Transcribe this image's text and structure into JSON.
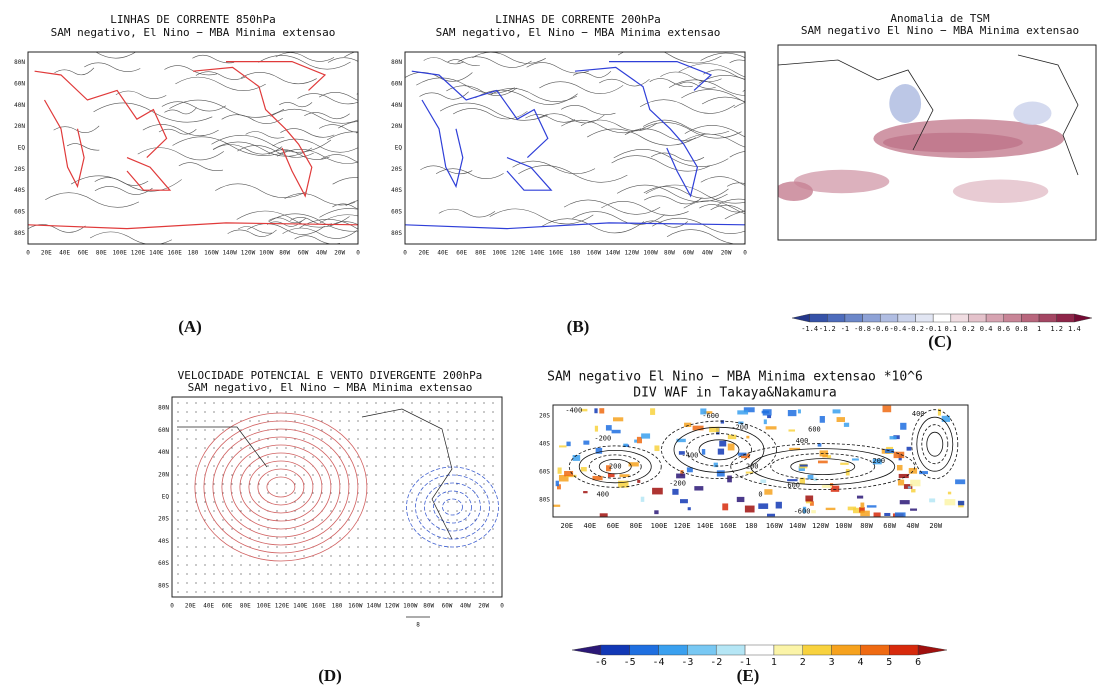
{
  "panels": [
    {
      "letter": "(A)",
      "title": [
        "LINHAS DE CORRENTE 850hPa",
        "SAM negativo, El Nino − MBA Minima extensao"
      ],
      "lat_labels": [
        "80N",
        "60N",
        "40N",
        "20N",
        "EQ",
        "20S",
        "40S",
        "60S",
        "80S"
      ],
      "lon_labels": [
        "0",
        "20E",
        "40E",
        "60E",
        "80E",
        "100E",
        "120E",
        "140E",
        "160E",
        "180",
        "160W",
        "140W",
        "120W",
        "100W",
        "80W",
        "60W",
        "40W",
        "20W",
        "0"
      ],
      "line_color": "#e03a3a"
    },
    {
      "letter": "(B)",
      "title": [
        "LINHAS DE CORRENTE 200hPa",
        "SAM negativo, El Nino − MBA Minima extensao"
      ],
      "lat_labels": [
        "80N",
        "60N",
        "40N",
        "20N",
        "EQ",
        "20S",
        "40S",
        "60S",
        "80S"
      ],
      "lon_labels": [
        "0",
        "20E",
        "40E",
        "60E",
        "80E",
        "100E",
        "120E",
        "140E",
        "160E",
        "180",
        "160W",
        "140W",
        "120W",
        "100W",
        "80W",
        "60W",
        "40W",
        "20W",
        "0"
      ],
      "line_color": "#2f3fd8"
    },
    {
      "letter": "(C)",
      "title": [
        "Anomalia de TSM",
        "SAM negativo El Nino − MBA Minima extensao"
      ],
      "colorbar": {
        "ticks": [
          -1.4,
          -1.2,
          -1,
          -0.8,
          -0.6,
          -0.4,
          -0.2,
          -0.1,
          0.1,
          0.2,
          0.4,
          0.6,
          0.8,
          1,
          1.2,
          1.4
        ],
        "colors": [
          "#24378a",
          "#3552a8",
          "#4d6cbc",
          "#6c87c9",
          "#8ea2d6",
          "#b0bde2",
          "#ccd4ec",
          "#e2e6f3",
          "#ffffff",
          "#f0dde2",
          "#e4c2cb",
          "#d6a3b1",
          "#c88597",
          "#b8667d",
          "#a44663",
          "#8e2549",
          "#730a33"
        ]
      }
    },
    {
      "letter": "(D)",
      "title": [
        "VELOCIDADE POTENCIAL E VENTO DIVERGENTE 200hPa",
        "SAM negativo, El Nino − MBA Minima extensao"
      ],
      "lat_labels": [
        "80N",
        "60N",
        "40N",
        "20N",
        "EQ",
        "20S",
        "40S",
        "60S",
        "80S"
      ],
      "lon_labels": [
        "0",
        "20E",
        "40E",
        "60E",
        "80E",
        "100E",
        "120E",
        "140E",
        "160E",
        "180",
        "160W",
        "140W",
        "120W",
        "100W",
        "80W",
        "60W",
        "40W",
        "20W",
        "0"
      ],
      "vector_scale": "8"
    },
    {
      "letter": "(E)",
      "title": [
        "SAM negativo El Nino − MBA Minima extensao *10^6",
        "DIV WAF in Takaya&Nakamura"
      ],
      "lat_labels": [
        "20S",
        "40S",
        "60S",
        "80S"
      ],
      "lon_labels": [
        "20E",
        "40E",
        "60E",
        "80E",
        "100E",
        "120E",
        "140E",
        "160E",
        "180",
        "160W",
        "140W",
        "120W",
        "100W",
        "80W",
        "60W",
        "40W",
        "20W"
      ],
      "contour_labels": [
        "-400",
        "-200",
        "200",
        "400",
        "-600",
        "-400",
        "-200",
        "200",
        "600",
        "-200",
        "400",
        "600",
        "400",
        "-200",
        "0",
        "-600"
      ],
      "colorbar": {
        "ticks": [
          -6,
          -5,
          -4,
          -3,
          -2,
          -1,
          1,
          2,
          3,
          4,
          5,
          6
        ],
        "colors": [
          "#2b1877",
          "#1238b5",
          "#1f6fe0",
          "#3aa0ef",
          "#78c8f3",
          "#b5e6f5",
          "#ffffff",
          "#fbf4a8",
          "#f8d23e",
          "#f6a21e",
          "#ef6a12",
          "#d72a0c",
          "#a0100e"
        ]
      }
    }
  ]
}
